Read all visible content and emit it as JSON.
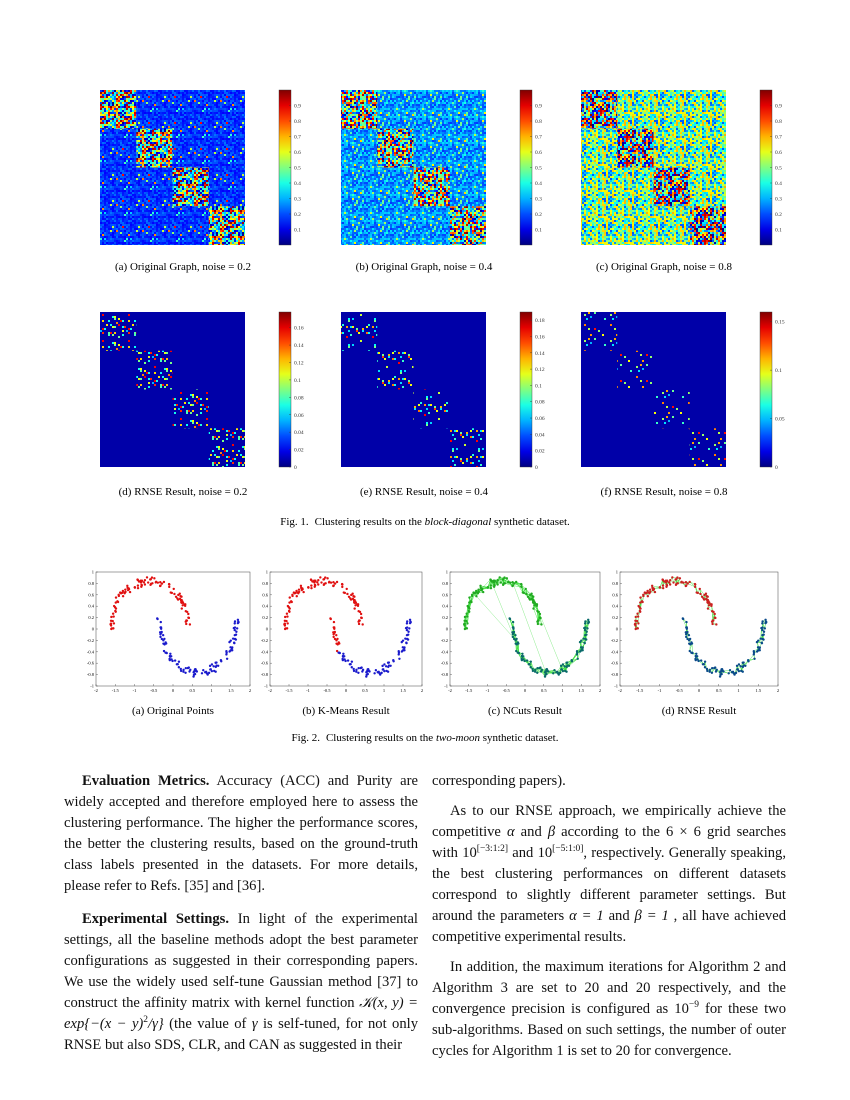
{
  "figure1": {
    "panels": [
      {
        "caption": "(a) Original Graph, noise = 0.2",
        "clim": [
          0,
          1
        ],
        "colorbar_ticks": [
          0.9,
          0.8,
          0.7,
          0.6,
          0.5,
          0.4,
          0.3,
          0.2,
          0.1
        ]
      },
      {
        "caption": "(b) Original Graph, noise = 0.4",
        "clim": [
          0,
          1
        ],
        "colorbar_ticks": [
          0.9,
          0.8,
          0.7,
          0.6,
          0.5,
          0.4,
          0.3,
          0.2,
          0.1
        ]
      },
      {
        "caption": "(c) Original Graph, noise = 0.8",
        "clim": [
          0,
          1
        ],
        "colorbar_ticks": [
          0.9,
          0.8,
          0.7,
          0.6,
          0.5,
          0.4,
          0.3,
          0.2,
          0.1
        ]
      },
      {
        "caption": "(d) RNSE Result, noise = 0.2",
        "clim": [
          0,
          0.178
        ],
        "colorbar_ticks": [
          0.16,
          0.14,
          0.12,
          0.1,
          0.08,
          0.06,
          0.04,
          0.02,
          0
        ]
      },
      {
        "caption": "(e) RNSE Result, noise = 0.4",
        "clim": [
          0,
          0.19
        ],
        "colorbar_ticks": [
          0.18,
          0.16,
          0.14,
          0.12,
          0.1,
          0.08,
          0.06,
          0.04,
          0.02,
          0
        ]
      },
      {
        "caption": "(f) RNSE Result, noise = 0.8",
        "clim": [
          0,
          0.16
        ],
        "colorbar_ticks": [
          0.15,
          0.1,
          0.05,
          0
        ]
      }
    ],
    "caption": [
      "Fig. 1.",
      "Clustering results on the ",
      "block-diagonal",
      " synthetic dataset."
    ]
  },
  "figure2": {
    "xlim": [
      -2,
      2
    ],
    "ylim": [
      -1,
      1
    ],
    "xticks": [
      -2,
      -1.5,
      -1,
      -0.5,
      0,
      0.5,
      1,
      1.5,
      2
    ],
    "yticks": [
      1,
      0.8,
      0.6,
      0.4,
      0.2,
      0,
      -0.2,
      -0.4,
      -0.6,
      -0.8,
      -1
    ],
    "panels": [
      {
        "caption": "(a) Original Points"
      },
      {
        "caption": "(b) K-Means Result"
      },
      {
        "caption": "(c) NCuts Result"
      },
      {
        "caption": "(d) RNSE Result"
      }
    ],
    "caption": [
      "Fig. 2.",
      "Clustering results on the ",
      "two-moon",
      " synthetic dataset."
    ]
  },
  "body": {
    "left": [
      {
        "heading": "Evaluation Metrics.",
        "text": [
          "Accuracy (ACC) and Purity are widely accepted and therefore employed here to assess the clustering performance. The higher the performance scores, the better the clustering results, based on the ground-truth class labels presented in the datasets. For more details, please refer to Refs. [35] and [36]."
        ]
      },
      {
        "heading": "Experimental Settings.",
        "text": [
          "In light of the experimental settings, all the baseline methods adopt the best parameter configurations as suggested in their corresponding papers. We use the widely used self-tune Gaussian method  [37] to construct the affinity matrix with kernel function ",
          "𝒦(x, y) = exp{−(x − y)",
          "2",
          "/γ}",
          " (the value of ",
          "γ",
          " is self-tuned, for not only RNSE but also SDS, CLR, and CAN as suggested in their"
        ]
      }
    ],
    "right": [
      {
        "text": [
          "corresponding papers)."
        ]
      },
      {
        "text": [
          "As to our RNSE approach, we empirically achieve the competitive ",
          "α",
          " and ",
          "β",
          " according to the ",
          "6 × 6",
          " grid searches with ",
          "10",
          "[−3:1:2]",
          " and ",
          "10",
          "[−5:1:0]",
          ", respectively. Generally speaking, the best clustering performances on different datasets correspond to slightly different parameter settings. But around the parameters ",
          "α = 1",
          " and ",
          "β = 1",
          " , all have achieved competitive experimental results."
        ]
      },
      {
        "text": [
          "In addition, the maximum iterations for Algorithm 2 and Algorithm 3 are set to 20 and 20 respectively, and the convergence precision is configured as ",
          "10",
          "−9",
          " for these two sub-algorithms. Based on such settings, the number of outer cycles for Algorithm 1 is set to 20 for convergence."
        ]
      }
    ]
  }
}
